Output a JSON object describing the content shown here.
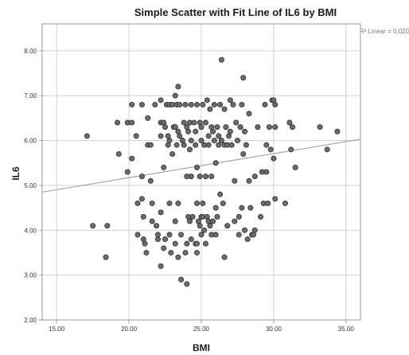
{
  "chart_data": {
    "type": "scatter",
    "title": "Simple Scatter with Fit Line of IL6 by BMI",
    "xlabel": "BMI",
    "ylabel": "IL6",
    "xlim": [
      14,
      36
    ],
    "ylim": [
      2,
      8.6
    ],
    "xticks": [
      15,
      20,
      25,
      30,
      35
    ],
    "xtick_labels": [
      "15.00",
      "20.00",
      "25.00",
      "30.00",
      "35.00"
    ],
    "yticks": [
      2,
      3,
      4,
      5,
      6,
      7,
      8
    ],
    "ytick_labels": [
      "2.00",
      "3.00",
      "4.00",
      "5.00",
      "6.00",
      "7.00",
      "8.00"
    ],
    "grid": true,
    "annotation": "R² Linear = 0.020",
    "fit_line": {
      "x": [
        14,
        36
      ],
      "y": [
        4.85,
        6.03
      ]
    },
    "colors": {
      "marker_fill": "#6b6b6b",
      "marker_edge": "#2f2f2f",
      "fit_line": "#9a9a9a",
      "grid": "#d2d2d2",
      "frame": "#9a9a9a"
    },
    "points": [
      [
        17.1,
        6.1
      ],
      [
        17.5,
        4.1
      ],
      [
        18.5,
        4.1
      ],
      [
        18.4,
        3.4
      ],
      [
        19.2,
        6.4
      ],
      [
        19.3,
        5.7
      ],
      [
        19.9,
        6.4
      ],
      [
        19.9,
        5.3
      ],
      [
        20.2,
        6.8
      ],
      [
        20.2,
        6.4
      ],
      [
        20.2,
        5.6
      ],
      [
        20.5,
        6.1
      ],
      [
        20.6,
        3.9
      ],
      [
        20.6,
        4.6
      ],
      [
        20.9,
        6.8
      ],
      [
        20.9,
        5.2
      ],
      [
        20.9,
        4.7
      ],
      [
        21.0,
        4.3
      ],
      [
        21.0,
        3.8
      ],
      [
        21.1,
        3.7
      ],
      [
        21.2,
        3.5
      ],
      [
        21.3,
        6.5
      ],
      [
        21.3,
        5.9
      ],
      [
        21.5,
        5.9
      ],
      [
        21.5,
        5.1
      ],
      [
        21.6,
        4.6
      ],
      [
        21.6,
        4.2
      ],
      [
        21.8,
        6.8
      ],
      [
        21.9,
        4.1
      ],
      [
        22.0,
        3.9
      ],
      [
        22.0,
        3.8
      ],
      [
        22.2,
        6.9
      ],
      [
        22.2,
        6.4
      ],
      [
        22.2,
        6.1
      ],
      [
        22.2,
        4.4
      ],
      [
        22.2,
        3.2
      ],
      [
        22.4,
        6.4
      ],
      [
        22.4,
        5.4
      ],
      [
        22.4,
        3.6
      ],
      [
        22.5,
        6.3
      ],
      [
        22.5,
        3.8
      ],
      [
        22.6,
        6.8
      ],
      [
        22.7,
        6.1
      ],
      [
        22.7,
        5.9
      ],
      [
        22.8,
        6.8
      ],
      [
        22.8,
        6.0
      ],
      [
        22.8,
        4.6
      ],
      [
        22.8,
        3.9
      ],
      [
        22.9,
        3.5
      ],
      [
        23.0,
        6.8
      ],
      [
        23.0,
        5.7
      ],
      [
        23.1,
        6.3
      ],
      [
        23.2,
        7.0
      ],
      [
        23.2,
        6.3
      ],
      [
        23.2,
        4.2
      ],
      [
        23.2,
        3.7
      ],
      [
        23.3,
        6.8
      ],
      [
        23.3,
        5.9
      ],
      [
        23.4,
        7.2
      ],
      [
        23.4,
        6.2
      ],
      [
        23.4,
        4.6
      ],
      [
        23.4,
        3.4
      ],
      [
        23.5,
        6.8
      ],
      [
        23.5,
        6.1
      ],
      [
        23.6,
        3.9
      ],
      [
        23.6,
        2.9
      ],
      [
        23.7,
        6.0
      ],
      [
        23.8,
        6.4
      ],
      [
        23.8,
        5.9
      ],
      [
        23.9,
        6.8
      ],
      [
        23.9,
        3.5
      ],
      [
        24.0,
        6.3
      ],
      [
        24.0,
        5.2
      ],
      [
        24.0,
        3.7
      ],
      [
        24.0,
        2.8
      ],
      [
        24.1,
        6.2
      ],
      [
        24.1,
        4.3
      ],
      [
        24.2,
        6.4
      ],
      [
        24.2,
        5.8
      ],
      [
        24.2,
        4.2
      ],
      [
        24.3,
        6.8
      ],
      [
        24.3,
        6.0
      ],
      [
        24.3,
        5.2
      ],
      [
        24.3,
        3.8
      ],
      [
        24.4,
        4.3
      ],
      [
        24.5,
        6.4
      ],
      [
        24.6,
        6.2
      ],
      [
        24.6,
        5.9
      ],
      [
        24.6,
        3.7
      ],
      [
        24.7,
        6.8
      ],
      [
        24.7,
        5.4
      ],
      [
        24.7,
        4.6
      ],
      [
        24.7,
        3.7
      ],
      [
        24.7,
        3.5
      ],
      [
        24.8,
        4.2
      ],
      [
        24.9,
        6.4
      ],
      [
        24.9,
        5.2
      ],
      [
        24.9,
        4.1
      ],
      [
        25.0,
        6.3
      ],
      [
        25.0,
        6.0
      ],
      [
        25.0,
        4.3
      ],
      [
        25.0,
        3.9
      ],
      [
        25.1,
        6.8
      ],
      [
        25.1,
        4.6
      ],
      [
        25.1,
        4.3
      ],
      [
        25.2,
        5.9
      ],
      [
        25.2,
        4.0
      ],
      [
        25.3,
        6.4
      ],
      [
        25.3,
        5.2
      ],
      [
        25.3,
        3.7
      ],
      [
        25.4,
        6.9
      ],
      [
        25.4,
        4.3
      ],
      [
        25.5,
        6.1
      ],
      [
        25.5,
        5.9
      ],
      [
        25.5,
        4.2
      ],
      [
        25.6,
        6.7
      ],
      [
        25.6,
        4.1
      ],
      [
        25.7,
        6.3
      ],
      [
        25.7,
        5.2
      ],
      [
        25.7,
        3.9
      ],
      [
        25.8,
        6.2
      ],
      [
        25.8,
        4.2
      ],
      [
        25.9,
        6.8
      ],
      [
        25.9,
        6.0
      ],
      [
        26.0,
        5.5
      ],
      [
        26.0,
        4.5
      ],
      [
        26.0,
        3.9
      ],
      [
        26.1,
        6.3
      ],
      [
        26.1,
        4.3
      ],
      [
        26.2,
        6.1
      ],
      [
        26.2,
        5.9
      ],
      [
        26.3,
        6.8
      ],
      [
        26.3,
        4.8
      ],
      [
        26.4,
        7.8
      ],
      [
        26.4,
        6.0
      ],
      [
        26.5,
        4.6
      ],
      [
        26.6,
        6.7
      ],
      [
        26.6,
        5.9
      ],
      [
        26.6,
        3.4
      ],
      [
        26.7,
        6.3
      ],
      [
        26.8,
        5.9
      ],
      [
        26.8,
        4.1
      ],
      [
        26.9,
        6.1
      ],
      [
        27.0,
        6.9
      ],
      [
        27.0,
        6.2
      ],
      [
        27.1,
        5.9
      ],
      [
        27.2,
        6.8
      ],
      [
        27.3,
        5.1
      ],
      [
        27.3,
        4.2
      ],
      [
        27.4,
        6.4
      ],
      [
        27.5,
        6.0
      ],
      [
        27.6,
        4.3
      ],
      [
        27.6,
        3.9
      ],
      [
        27.7,
        6.3
      ],
      [
        27.8,
        6.8
      ],
      [
        27.8,
        4.5
      ],
      [
        27.9,
        7.4
      ],
      [
        27.9,
        5.7
      ],
      [
        28.0,
        6.2
      ],
      [
        28.0,
        4.0
      ],
      [
        28.1,
        5.9
      ],
      [
        28.2,
        3.8
      ],
      [
        28.3,
        6.6
      ],
      [
        28.3,
        5.1
      ],
      [
        28.4,
        4.5
      ],
      [
        28.5,
        3.9
      ],
      [
        28.6,
        3.9
      ],
      [
        28.7,
        5.2
      ],
      [
        28.7,
        4.0
      ],
      [
        28.9,
        6.3
      ],
      [
        29.1,
        4.3
      ],
      [
        29.2,
        5.3
      ],
      [
        29.3,
        4.6
      ],
      [
        29.4,
        6.8
      ],
      [
        29.5,
        5.9
      ],
      [
        29.5,
        5.3
      ],
      [
        29.6,
        4.6
      ],
      [
        29.7,
        6.3
      ],
      [
        29.8,
        5.8
      ],
      [
        29.9,
        6.9
      ],
      [
        30.0,
        6.9
      ],
      [
        30.0,
        5.6
      ],
      [
        30.1,
        6.8
      ],
      [
        30.1,
        6.3
      ],
      [
        30.1,
        4.7
      ],
      [
        30.8,
        4.6
      ],
      [
        31.1,
        6.4
      ],
      [
        31.2,
        5.8
      ],
      [
        31.3,
        6.3
      ],
      [
        31.5,
        5.4
      ],
      [
        33.2,
        6.3
      ],
      [
        33.7,
        5.8
      ],
      [
        34.4,
        6.2
      ]
    ]
  }
}
